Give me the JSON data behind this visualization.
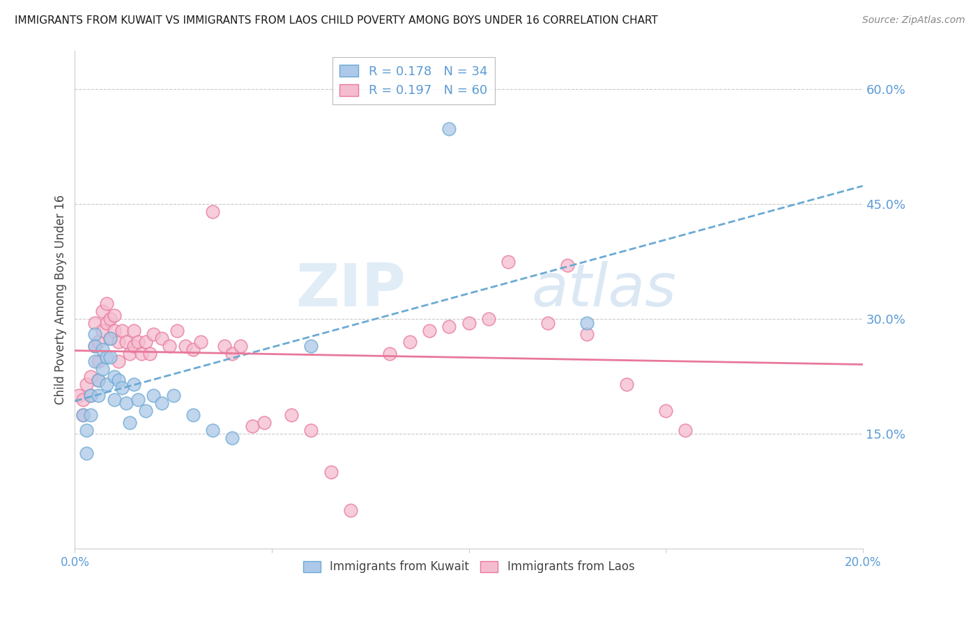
{
  "title": "IMMIGRANTS FROM KUWAIT VS IMMIGRANTS FROM LAOS CHILD POVERTY AMONG BOYS UNDER 16 CORRELATION CHART",
  "source": "Source: ZipAtlas.com",
  "ylabel": "Child Poverty Among Boys Under 16",
  "xlim": [
    0.0,
    0.2
  ],
  "ylim": [
    0.0,
    0.65
  ],
  "xticks": [
    0.0,
    0.05,
    0.1,
    0.15,
    0.2
  ],
  "xticklabels": [
    "0.0%",
    "",
    "",
    "",
    "20.0%"
  ],
  "yticks_right": [
    0.15,
    0.3,
    0.45,
    0.6
  ],
  "ytick_labels_right": [
    "15.0%",
    "30.0%",
    "45.0%",
    "60.0%"
  ],
  "right_axis_color": "#5b9bd5",
  "grid_color": "#c8c8c8",
  "background_color": "#ffffff",
  "kuwait_color": "#adc8e8",
  "kuwait_edge_color": "#6aaad4",
  "laos_color": "#f5bcd0",
  "laos_edge_color": "#e8789a",
  "kuwait_line_color": "#6aaad4",
  "laos_line_color": "#e8789a",
  "legend_label_kuwait": "R = 0.178   N = 34",
  "legend_label_laos": "R = 0.197   N = 60",
  "legend_bottom_kuwait": "Immigrants from Kuwait",
  "legend_bottom_laos": "Immigrants from Laos",
  "watermark_zip": "ZIP",
  "watermark_atlas": "atlas",
  "kuwait_x": [
    0.002,
    0.003,
    0.003,
    0.004,
    0.004,
    0.005,
    0.005,
    0.005,
    0.006,
    0.006,
    0.007,
    0.007,
    0.008,
    0.008,
    0.009,
    0.009,
    0.01,
    0.01,
    0.011,
    0.012,
    0.013,
    0.014,
    0.015,
    0.016,
    0.018,
    0.02,
    0.022,
    0.025,
    0.03,
    0.035,
    0.04,
    0.06,
    0.095,
    0.13
  ],
  "kuwait_y": [
    0.175,
    0.155,
    0.125,
    0.2,
    0.175,
    0.28,
    0.265,
    0.245,
    0.22,
    0.2,
    0.26,
    0.235,
    0.25,
    0.215,
    0.275,
    0.25,
    0.225,
    0.195,
    0.22,
    0.21,
    0.19,
    0.165,
    0.215,
    0.195,
    0.18,
    0.2,
    0.19,
    0.2,
    0.175,
    0.155,
    0.145,
    0.265,
    0.548,
    0.295
  ],
  "laos_x": [
    0.001,
    0.002,
    0.002,
    0.003,
    0.004,
    0.004,
    0.005,
    0.005,
    0.006,
    0.006,
    0.006,
    0.007,
    0.007,
    0.008,
    0.008,
    0.009,
    0.009,
    0.01,
    0.01,
    0.011,
    0.011,
    0.012,
    0.013,
    0.014,
    0.015,
    0.015,
    0.016,
    0.017,
    0.018,
    0.019,
    0.02,
    0.022,
    0.024,
    0.026,
    0.028,
    0.03,
    0.032,
    0.035,
    0.038,
    0.04,
    0.042,
    0.045,
    0.048,
    0.055,
    0.06,
    0.065,
    0.07,
    0.08,
    0.085,
    0.09,
    0.095,
    0.1,
    0.105,
    0.11,
    0.12,
    0.125,
    0.13,
    0.14,
    0.15,
    0.155
  ],
  "laos_y": [
    0.2,
    0.195,
    0.175,
    0.215,
    0.225,
    0.2,
    0.295,
    0.265,
    0.27,
    0.245,
    0.22,
    0.31,
    0.285,
    0.32,
    0.295,
    0.3,
    0.275,
    0.305,
    0.285,
    0.27,
    0.245,
    0.285,
    0.27,
    0.255,
    0.285,
    0.265,
    0.27,
    0.255,
    0.27,
    0.255,
    0.28,
    0.275,
    0.265,
    0.285,
    0.265,
    0.26,
    0.27,
    0.44,
    0.265,
    0.255,
    0.265,
    0.16,
    0.165,
    0.175,
    0.155,
    0.1,
    0.05,
    0.255,
    0.27,
    0.285,
    0.29,
    0.295,
    0.3,
    0.375,
    0.295,
    0.37,
    0.28,
    0.215,
    0.18,
    0.155
  ]
}
